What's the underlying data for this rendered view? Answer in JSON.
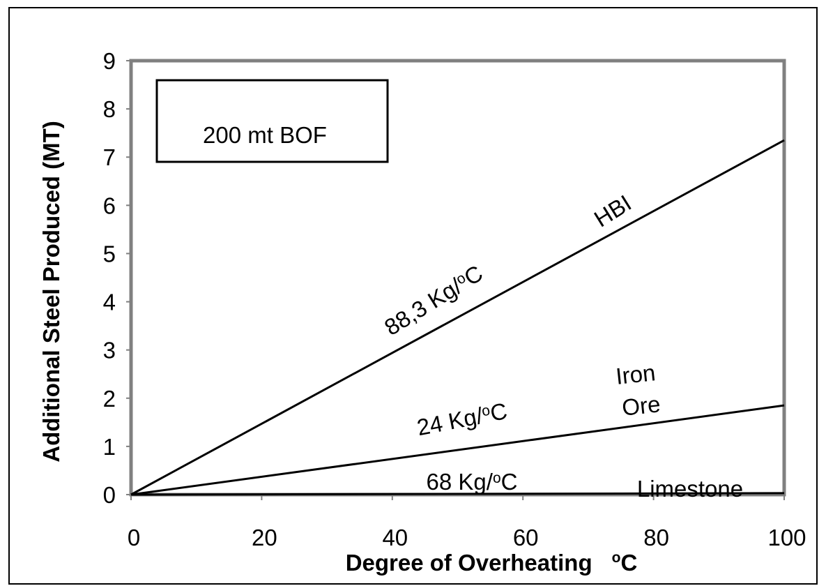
{
  "chart_data": {
    "type": "line",
    "title": "",
    "xlabel": "Degree of Overheating",
    "xlabel_unit": "C",
    "ylabel": "Additional Steel Produced (MT)",
    "xlim": [
      0,
      100
    ],
    "ylim": [
      0,
      9
    ],
    "x_ticks": [
      "0",
      "20",
      "40",
      "60",
      "80",
      "100"
    ],
    "y_ticks": [
      "0",
      "1",
      "2",
      "3",
      "4",
      "5",
      "6",
      "7",
      "8",
      "9"
    ],
    "grid": false,
    "series": [
      {
        "name": "HBI",
        "x": [
          0,
          100
        ],
        "y": [
          0,
          7.35
        ]
      },
      {
        "name": "Iron Ore",
        "x": [
          0,
          100
        ],
        "y": [
          0,
          1.85
        ]
      },
      {
        "name": "Limestone",
        "x": [
          0,
          100
        ],
        "y": [
          0,
          0.03
        ]
      }
    ],
    "annotations": {
      "box_label": "200 mt BOF",
      "hbi_name": "HBI",
      "hbi_rate": "88,3 Kg/",
      "iron_name_1": "Iron",
      "iron_name_2": "Ore",
      "iron_rate": "24 Kg/",
      "limestone_name": "Limestone",
      "limestone_rate": "68 Kg/",
      "degree_mark": "o",
      "unit_c": "C"
    },
    "colors": {
      "plot_border": "#808080",
      "line": "#000000"
    }
  }
}
